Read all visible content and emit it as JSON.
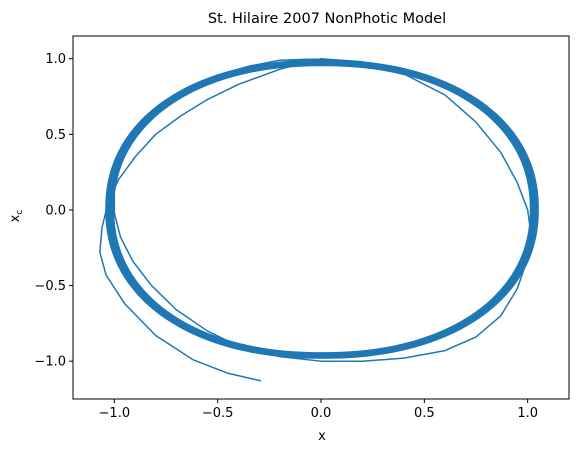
{
  "chart_data": {
    "type": "line",
    "title": "St. Hilaire 2007 NonPhotic Model",
    "xlabel": "x",
    "ylabel": "x",
    "ylabel_sub": "c",
    "xlim": [
      -1.2,
      1.2
    ],
    "ylim": [
      -1.25,
      1.15
    ],
    "xticks": [
      -1.0,
      -0.5,
      0.0,
      0.5,
      1.0
    ],
    "xtick_labels": [
      "−1.0",
      "−0.5",
      "0.0",
      "0.5",
      "1.0"
    ],
    "yticks": [
      -1.0,
      -0.5,
      0.0,
      0.5,
      1.0
    ],
    "ytick_labels": [
      "−1.0",
      "−0.5",
      "0.0",
      "0.5",
      "1.0"
    ],
    "grid": false,
    "line_color": "#1f77b4",
    "series": [
      {
        "x": [
          -0.29,
          -0.45,
          -0.62,
          -0.8,
          -0.95,
          -1.04,
          -1.07,
          -1.06,
          -1.03,
          -0.98,
          -0.9,
          -0.8,
          -0.68,
          -0.55,
          -0.4,
          -0.2,
          0.0,
          0.2,
          0.4,
          0.6,
          0.75,
          0.87,
          0.95,
          1.0,
          1.015,
          1.0,
          0.95,
          0.87,
          0.75,
          0.6,
          0.4,
          0.2,
          0.0,
          -0.2,
          -0.4,
          -0.55,
          -0.7,
          -0.82,
          -0.91,
          -0.97,
          -1.0,
          -1.0,
          -0.98,
          -0.94,
          -0.87,
          -0.77,
          -0.65,
          -0.5,
          -0.35,
          -0.2,
          0.0
        ],
        "y": [
          -1.13,
          -1.08,
          -0.99,
          -0.83,
          -0.62,
          -0.43,
          -0.28,
          -0.12,
          0.05,
          0.2,
          0.35,
          0.5,
          0.62,
          0.73,
          0.83,
          0.93,
          1.0,
          0.98,
          0.9,
          0.76,
          0.58,
          0.38,
          0.18,
          0.0,
          -0.15,
          -0.32,
          -0.52,
          -0.7,
          -0.84,
          -0.93,
          -0.98,
          -1.0,
          -1.0,
          -0.97,
          -0.9,
          -0.8,
          -0.66,
          -0.5,
          -0.34,
          -0.18,
          -0.02,
          0.14,
          0.3,
          0.45,
          0.58,
          0.7,
          0.8,
          0.89,
          0.95,
          0.99,
          1.0
        ]
      }
    ],
    "limit_cycle": {
      "center_x": -0.0,
      "center_y": 0.0,
      "loops": 14,
      "x_min": -1.01,
      "x_max": 1.02,
      "y_min": -1.01,
      "y_max": 1.02,
      "width_variation": 0.035
    }
  }
}
